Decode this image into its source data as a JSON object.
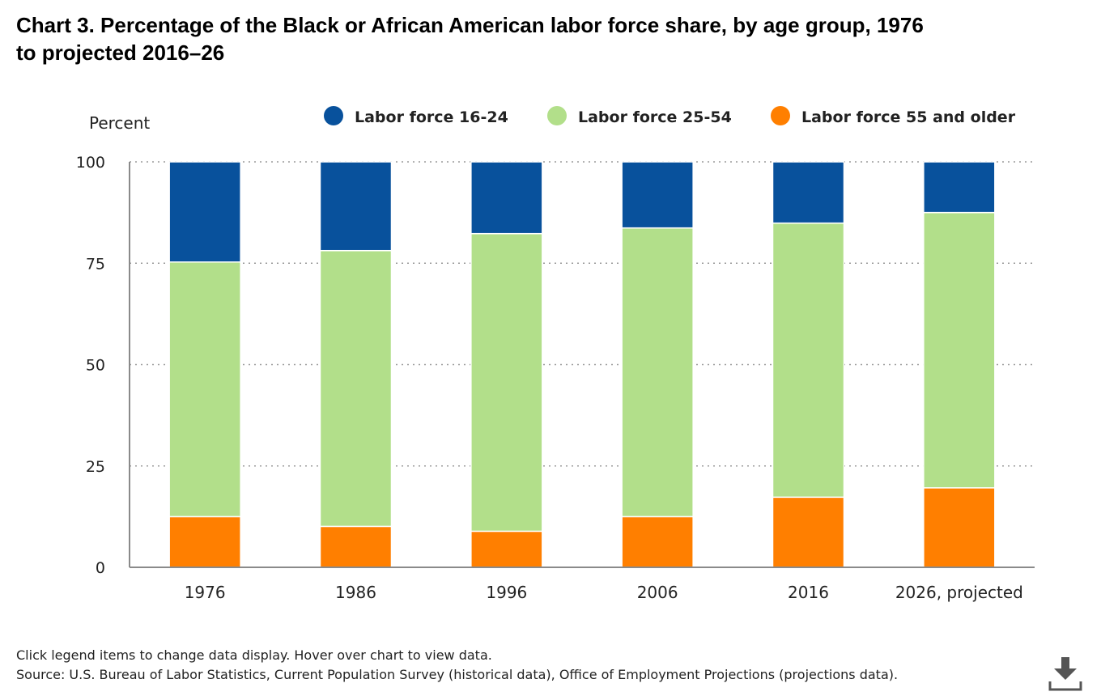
{
  "page": {
    "title_line1": "Chart 3. Percentage of the Black or African American labor force share, by age group, 1976",
    "title_line2": "to projected 2016–26",
    "note": "Click legend items to change data display. Hover over chart to view data.",
    "source": "Source: U.S. Bureau of Labor Statistics, Current Population Survey (historical data), Office of Employment Projections (projections data).",
    "download_icon": "download-icon"
  },
  "chart_data": {
    "type": "bar",
    "stacked": true,
    "title": "Chart 3. Percentage of the Black or African American labor force share, by age group, 1976 to projected 2016–26",
    "ylabel": "Percent",
    "xlabel": "",
    "ylim": [
      0,
      100
    ],
    "yticks": [
      0,
      25,
      50,
      75,
      100
    ],
    "grid": true,
    "legend_position": "top",
    "categories": [
      "1976",
      "1986",
      "1996",
      "2006",
      "2016",
      "2026, projected"
    ],
    "series": [
      {
        "name": "Labor force 55 and older",
        "color": "#ff7f00",
        "values": [
          12.5,
          10.1,
          8.9,
          12.5,
          17.3,
          19.6
        ]
      },
      {
        "name": "Labor force 25-54",
        "color": "#b2df8a",
        "values": [
          62.8,
          68.0,
          73.4,
          71.2,
          67.6,
          67.9
        ]
      },
      {
        "name": "Labor force 16-24",
        "color": "#08519c",
        "values": [
          24.7,
          21.9,
          17.7,
          16.3,
          15.1,
          12.5
        ]
      }
    ],
    "legend_order": [
      2,
      1,
      0
    ]
  }
}
